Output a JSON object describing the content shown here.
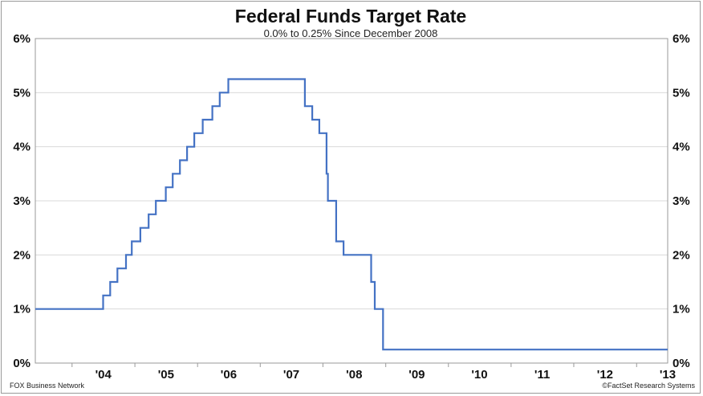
{
  "chart_data": {
    "type": "line",
    "title": "Federal Funds Target Rate",
    "subtitle": "0.0% to 0.25% Since December 2008",
    "xlabel": "",
    "ylabel": "",
    "grid": true,
    "legend": "none",
    "x_ticks": [
      "'04",
      "'05",
      "'06",
      "'07",
      "'08",
      "'09",
      "'10",
      "'11",
      "'12",
      "'13"
    ],
    "y_ticks": [
      "0%",
      "1%",
      "2%",
      "3%",
      "4%",
      "5%",
      "6%"
    ],
    "y_tick_values": [
      0,
      1,
      2,
      3,
      4,
      5,
      6
    ],
    "ylim": [
      0,
      6
    ],
    "xlim": [
      "2003-06-01",
      "2013-07-01"
    ],
    "series": [
      {
        "color": "#4472c4",
        "step": "post",
        "points": [
          {
            "x": "2003-06-01",
            "y": 1.0
          },
          {
            "x": "2004-06-30",
            "y": 1.25
          },
          {
            "x": "2004-08-10",
            "y": 1.5
          },
          {
            "x": "2004-09-21",
            "y": 1.75
          },
          {
            "x": "2004-11-10",
            "y": 2.0
          },
          {
            "x": "2004-12-14",
            "y": 2.25
          },
          {
            "x": "2005-02-02",
            "y": 2.5
          },
          {
            "x": "2005-03-22",
            "y": 2.75
          },
          {
            "x": "2005-05-03",
            "y": 3.0
          },
          {
            "x": "2005-06-30",
            "y": 3.25
          },
          {
            "x": "2005-08-09",
            "y": 3.5
          },
          {
            "x": "2005-09-20",
            "y": 3.75
          },
          {
            "x": "2005-11-01",
            "y": 4.0
          },
          {
            "x": "2005-12-13",
            "y": 4.25
          },
          {
            "x": "2006-01-31",
            "y": 4.5
          },
          {
            "x": "2006-03-28",
            "y": 4.75
          },
          {
            "x": "2006-05-10",
            "y": 5.0
          },
          {
            "x": "2006-06-29",
            "y": 5.25
          },
          {
            "x": "2007-09-18",
            "y": 4.75
          },
          {
            "x": "2007-10-31",
            "y": 4.5
          },
          {
            "x": "2007-12-11",
            "y": 4.25
          },
          {
            "x": "2008-01-22",
            "y": 3.5
          },
          {
            "x": "2008-01-30",
            "y": 3.0
          },
          {
            "x": "2008-03-18",
            "y": 2.25
          },
          {
            "x": "2008-04-30",
            "y": 2.0
          },
          {
            "x": "2008-10-08",
            "y": 1.5
          },
          {
            "x": "2008-10-29",
            "y": 1.0
          },
          {
            "x": "2008-12-16",
            "y": 0.25
          },
          {
            "x": "2013-07-01",
            "y": 0.25
          }
        ]
      }
    ]
  },
  "footer": {
    "left": "FOX Business Network",
    "right": "©FactSet Research Systems"
  }
}
